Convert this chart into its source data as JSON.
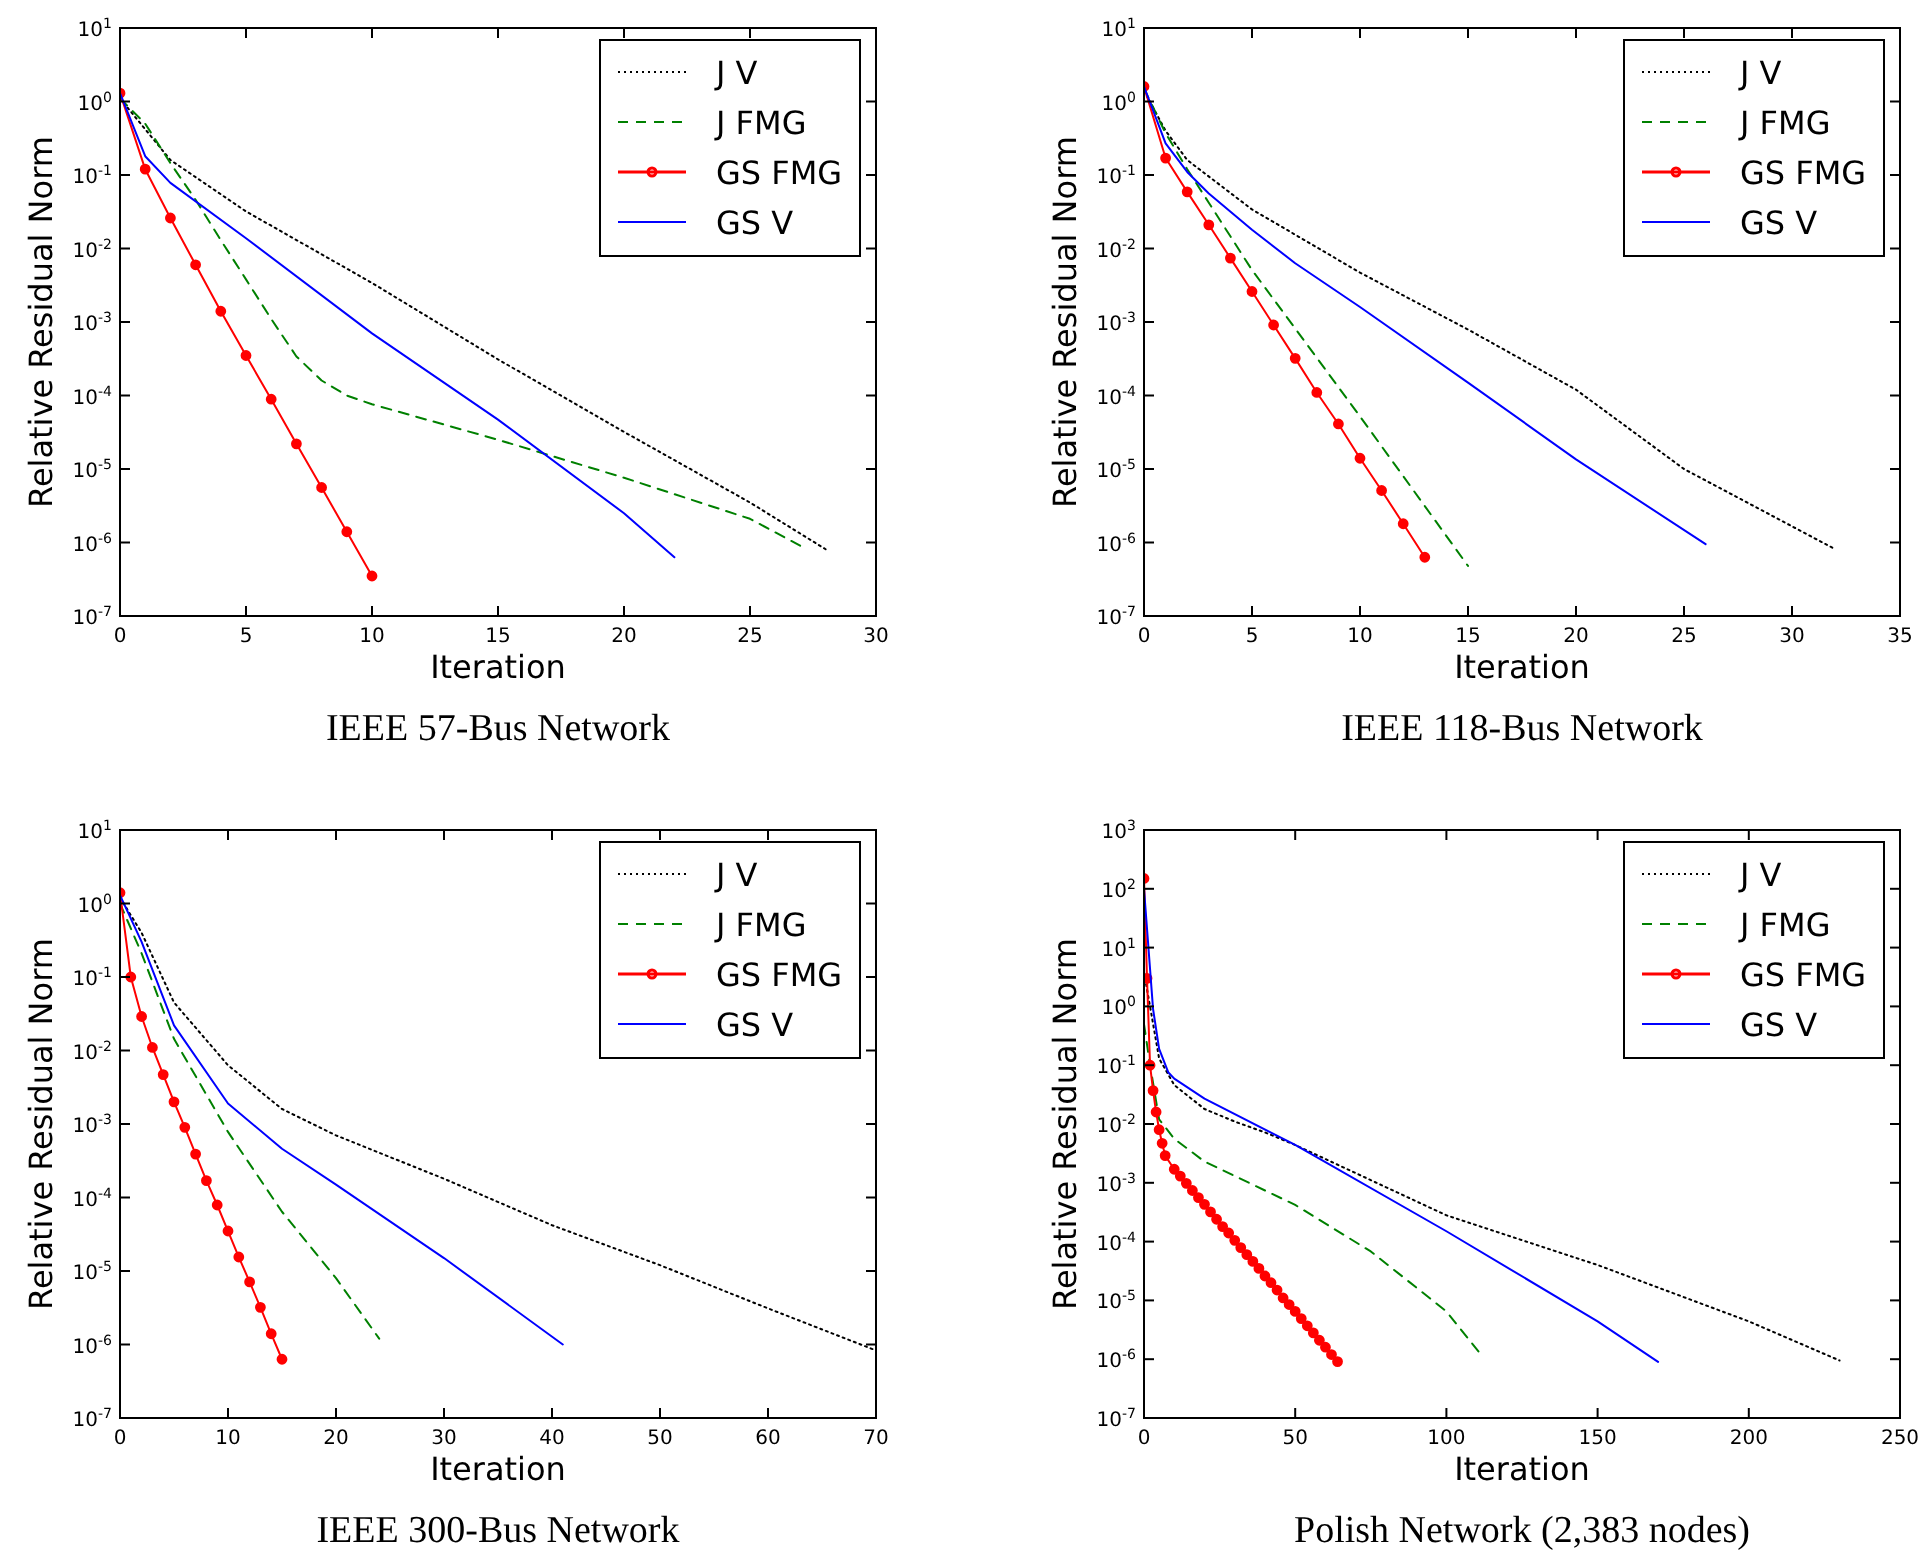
{
  "chart_data": [
    {
      "type": "line",
      "title": "IEEE 57-Bus Network",
      "xlabel": "Iteration",
      "ylabel": "Relative Residual Norm",
      "log": "y",
      "legend": "top right",
      "xlim": [
        0,
        30
      ],
      "xticks": [
        0,
        5,
        10,
        15,
        20,
        25,
        30
      ],
      "ylim": [
        1e-07,
        10
      ],
      "yticks": [
        {
          "value": 1e-07,
          "label": "10$^{-7}$"
        },
        {
          "value": 1e-06,
          "label": "10$^{-6}$"
        },
        {
          "value": 1e-05,
          "label": "10$^{-5}$"
        },
        {
          "value": 0.0001,
          "label": "10$^{-4}$"
        },
        {
          "value": 0.001,
          "label": "10$^{-3}$"
        },
        {
          "value": 0.01,
          "label": "10$^{-2}$"
        },
        {
          "value": 0.1,
          "label": "10$^{-1}$"
        },
        {
          "value": 1,
          "label": "10$^{0}$"
        },
        {
          "value": 10,
          "label": "10$^{1}$"
        }
      ],
      "series": [
        {
          "name": "J V",
          "color": "#000000",
          "line_style": "dotted",
          "marker": "none",
          "x": [
            0,
            2,
            5,
            10,
            15,
            20,
            25,
            28
          ],
          "values": [
            1.1,
            0.16,
            0.032,
            0.0034,
            0.00031,
            3.2e-05,
            3.5e-06,
            8.1e-07
          ]
        },
        {
          "name": "J FMG",
          "color": "#008000",
          "line_style": "dashed",
          "marker": "none",
          "x": [
            0,
            1,
            2,
            3,
            4,
            5,
            6,
            7,
            8,
            9,
            10,
            15,
            20,
            25,
            27
          ],
          "values": [
            1.1,
            0.5,
            0.145,
            0.046,
            0.013,
            0.0038,
            0.0011,
            0.00034,
            0.00016,
            0.0001,
            7.6e-05,
            2.5e-05,
            7.6e-06,
            2.1e-06,
            9e-07
          ]
        },
        {
          "name": "GS FMG",
          "color": "#ff0000",
          "line_style": "solid",
          "marker": "circle",
          "x": [
            0,
            1,
            2,
            3,
            4,
            5,
            6,
            7,
            8,
            9,
            10
          ],
          "values": [
            1.3,
            0.12,
            0.026,
            0.006,
            0.0014,
            0.00035,
            8.9e-05,
            2.2e-05,
            5.6e-06,
            1.4e-06,
            3.5e-07
          ]
        },
        {
          "name": "GS V",
          "color": "#0000ff",
          "line_style": "solid",
          "marker": "none",
          "x": [
            0,
            1,
            2,
            5,
            10,
            15,
            20,
            22
          ],
          "values": [
            1.3,
            0.18,
            0.078,
            0.0138,
            0.0007,
            4.7e-05,
            2.5e-06,
            6.3e-07
          ]
        }
      ]
    },
    {
      "type": "line",
      "title": "IEEE 118-Bus Network",
      "xlabel": "Iteration",
      "ylabel": "Relative Residual Norm",
      "log": "y",
      "legend": "top right",
      "xlim": [
        0,
        35
      ],
      "xticks": [
        0,
        5,
        10,
        15,
        20,
        25,
        30,
        35
      ],
      "ylim": [
        1e-07,
        10
      ],
      "yticks": [
        {
          "value": 1e-07,
          "label": "10$^{-7}$"
        },
        {
          "value": 1e-06,
          "label": "10$^{-6}$"
        },
        {
          "value": 1e-05,
          "label": "10$^{-5}$"
        },
        {
          "value": 0.0001,
          "label": "10$^{-4}$"
        },
        {
          "value": 0.001,
          "label": "10$^{-3}$"
        },
        {
          "value": 0.01,
          "label": "10$^{-2}$"
        },
        {
          "value": 0.1,
          "label": "10$^{-1}$"
        },
        {
          "value": 1,
          "label": "10$^{0}$"
        },
        {
          "value": 10,
          "label": "10$^{1}$"
        }
      ],
      "series": [
        {
          "name": "J V",
          "color": "#000000",
          "line_style": "dotted",
          "marker": "none",
          "x": [
            0,
            1,
            2,
            5,
            10,
            15,
            20,
            25,
            32
          ],
          "values": [
            1.4,
            0.4,
            0.16,
            0.034,
            0.0047,
            0.00079,
            0.00012,
            1e-05,
            8.1e-07
          ]
        },
        {
          "name": "J FMG",
          "color": "#008000",
          "line_style": "dashed",
          "marker": "none",
          "x": [
            0,
            1,
            2,
            3,
            5,
            10,
            15
          ],
          "values": [
            1.5,
            0.37,
            0.12,
            0.042,
            0.0051,
            5.2e-05,
            4.8e-07
          ]
        },
        {
          "name": "GS FMG",
          "color": "#ff0000",
          "line_style": "solid",
          "marker": "circle",
          "x": [
            0,
            1,
            2,
            3,
            4,
            5,
            6,
            7,
            8,
            9,
            10,
            11,
            12,
            13
          ],
          "values": [
            1.6,
            0.17,
            0.059,
            0.021,
            0.0074,
            0.0026,
            0.00091,
            0.00032,
            0.00011,
            4.1e-05,
            1.4e-05,
            5.1e-06,
            1.8e-06,
            6.3e-07
          ]
        },
        {
          "name": "GS V",
          "color": "#0000ff",
          "line_style": "solid",
          "marker": "none",
          "x": [
            0,
            1,
            2,
            3,
            5,
            7,
            10,
            15,
            20,
            26
          ],
          "values": [
            1.6,
            0.27,
            0.11,
            0.056,
            0.018,
            0.0063,
            0.0016,
            0.00015,
            1.35e-05,
            9.5e-07
          ]
        }
      ]
    },
    {
      "type": "line",
      "title": "IEEE 300-Bus Network",
      "xlabel": "Iteration",
      "ylabel": "Relative Residual Norm",
      "log": "y",
      "legend": "top right",
      "xlim": [
        0,
        70
      ],
      "xticks": [
        0,
        10,
        20,
        30,
        40,
        50,
        60,
        70
      ],
      "ylim": [
        1e-07,
        10
      ],
      "yticks": [
        {
          "value": 1e-07,
          "label": "10$^{-7}$"
        },
        {
          "value": 1e-06,
          "label": "10$^{-6}$"
        },
        {
          "value": 1e-05,
          "label": "10$^{-5}$"
        },
        {
          "value": 0.0001,
          "label": "10$^{-4}$"
        },
        {
          "value": 0.001,
          "label": "10$^{-3}$"
        },
        {
          "value": 0.01,
          "label": "10$^{-2}$"
        },
        {
          "value": 0.1,
          "label": "10$^{-1}$"
        },
        {
          "value": 1,
          "label": "10$^{0}$"
        },
        {
          "value": 10,
          "label": "10$^{1}$"
        }
      ],
      "series": [
        {
          "name": "J V",
          "color": "#000000",
          "line_style": "dotted",
          "marker": "none",
          "x": [
            0,
            2,
            5,
            10,
            15,
            20,
            30,
            40,
            50,
            60,
            70
          ],
          "values": [
            1.2,
            0.4,
            0.045,
            0.0063,
            0.0016,
            0.0007,
            0.00018,
            4.2e-05,
            1.2e-05,
            3.1e-06,
            8.3e-07
          ]
        },
        {
          "name": "J FMG",
          "color": "#008000",
          "line_style": "dashed",
          "marker": "none",
          "x": [
            0,
            2,
            5,
            10,
            15,
            20,
            24
          ],
          "values": [
            1.0,
            0.21,
            0.0144,
            0.00078,
            6.4e-05,
            8e-06,
            1.2e-06
          ]
        },
        {
          "name": "GS FMG",
          "color": "#ff0000",
          "line_style": "solid",
          "marker": "circle",
          "x": [
            0,
            1,
            2,
            3,
            4,
            5,
            6,
            7,
            8,
            9,
            10,
            11,
            12,
            13,
            14,
            15
          ],
          "values": [
            1.4,
            0.1,
            0.029,
            0.011,
            0.0047,
            0.002,
            0.0009,
            0.00039,
            0.00017,
            7.9e-05,
            3.5e-05,
            1.55e-05,
            7.1e-06,
            3.2e-06,
            1.4e-06,
            6.3e-07
          ]
        },
        {
          "name": "GS V",
          "color": "#0000ff",
          "line_style": "solid",
          "marker": "none",
          "x": [
            0,
            2,
            5,
            10,
            15,
            20,
            30,
            41
          ],
          "values": [
            1.3,
            0.3,
            0.022,
            0.0019,
            0.00046,
            0.00015,
            1.5e-05,
            1e-06
          ]
        }
      ]
    },
    {
      "type": "line",
      "title": "Polish Network (2,383 nodes)",
      "xlabel": "Iteration",
      "ylabel": "Relative Residual Norm",
      "log": "y",
      "legend": "top right",
      "xlim": [
        0,
        250
      ],
      "xticks": [
        0,
        50,
        100,
        150,
        200,
        250
      ],
      "ylim": [
        1e-07,
        1000
      ],
      "yticks": [
        {
          "value": 1e-07,
          "label": "10$^{-7}$"
        },
        {
          "value": 1e-06,
          "label": "10$^{-6}$"
        },
        {
          "value": 1e-05,
          "label": "10$^{-5}$"
        },
        {
          "value": 0.0001,
          "label": "10$^{-4}$"
        },
        {
          "value": 0.001,
          "label": "10$^{-3}$"
        },
        {
          "value": 0.01,
          "label": "10$^{-2}$"
        },
        {
          "value": 0.1,
          "label": "10$^{-1}$"
        },
        {
          "value": 1,
          "label": "10$^{0}$"
        },
        {
          "value": 10,
          "label": "10$^{1}$"
        },
        {
          "value": 100,
          "label": "10$^{2}$"
        },
        {
          "value": 1000,
          "label": "10$^{3}$"
        }
      ],
      "series": [
        {
          "name": "J V",
          "color": "#000000",
          "line_style": "dotted",
          "marker": "none",
          "x": [
            0,
            2,
            5,
            10,
            20,
            30,
            40,
            50,
            100,
            150,
            200,
            230
          ],
          "values": [
            3.8,
            1,
            0.13,
            0.046,
            0.018,
            0.011,
            0.0072,
            0.0044,
            0.00028,
            4e-05,
            4.4e-06,
            9.5e-07
          ]
        },
        {
          "name": "J FMG",
          "color": "#008000",
          "line_style": "dashed",
          "marker": "none",
          "x": [
            0,
            2,
            3,
            5,
            10,
            20,
            50,
            75,
            100,
            112
          ],
          "values": [
            0.5,
            0.1,
            0.05,
            0.012,
            0.0056,
            0.0023,
            0.00042,
            6.8e-05,
            6.5e-06,
            1.1e-06
          ]
        },
        {
          "name": "GS FMG",
          "color": "#ff0000",
          "line_style": "solid",
          "marker": "circle",
          "x": [
            0,
            1,
            2,
            3,
            4,
            5,
            6,
            7,
            10,
            12,
            14,
            16,
            18,
            20,
            22,
            24,
            26,
            28,
            30,
            32,
            34,
            36,
            38,
            40,
            42,
            44,
            46,
            48,
            50,
            52,
            54,
            56,
            58,
            60,
            62,
            64
          ],
          "values": [
            150,
            3,
            0.1,
            0.037,
            0.016,
            0.008,
            0.0047,
            0.0029,
            0.0017,
            0.0013,
            0.00098,
            0.00074,
            0.00056,
            0.00043,
            0.00032,
            0.00024,
            0.00018,
            0.00014,
            0.000105,
            7.9e-05,
            6e-05,
            4.6e-05,
            3.5e-05,
            2.6e-05,
            2e-05,
            1.5e-05,
            1.1e-05,
            8.5e-06,
            6.5e-06,
            4.9e-06,
            3.7e-06,
            2.8e-06,
            2.1e-06,
            1.6e-06,
            1.2e-06,
            9.1e-07
          ]
        },
        {
          "name": "GS V",
          "color": "#0000ff",
          "line_style": "solid",
          "marker": "none",
          "x": [
            0,
            3,
            5,
            8,
            10,
            20,
            50,
            100,
            150,
            170
          ],
          "values": [
            100,
            0.9,
            0.19,
            0.076,
            0.059,
            0.027,
            0.0044,
            0.00015,
            4.4e-06,
            9e-07
          ]
        }
      ]
    }
  ]
}
